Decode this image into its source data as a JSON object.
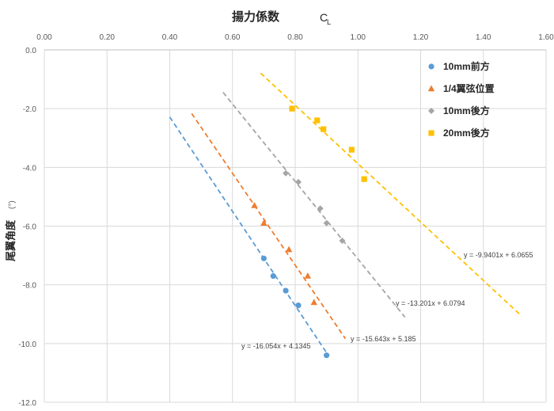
{
  "chart_data": {
    "type": "scatter",
    "title": "揚力係数",
    "title_symbol": "C",
    "title_subscript": "L",
    "xlabel": "",
    "ylabel": "尾翼角度",
    "ylabel_unit": "(°)",
    "xlim": [
      0.0,
      1.6
    ],
    "ylim": [
      -12.0,
      0.0
    ],
    "x_axis_position": "top",
    "x_ticks": [
      "0.00",
      "0.20",
      "0.40",
      "0.60",
      "0.80",
      "1.00",
      "1.20",
      "1.40",
      "1.60"
    ],
    "y_ticks": [
      "0.0",
      "-2.0",
      "-4.0",
      "-6.0",
      "-8.0",
      "-10.0",
      "-12.0"
    ],
    "grid": true,
    "legend_position": "top-right",
    "series": [
      {
        "name": "10mm前方",
        "color": "#5B9BD5",
        "marker": "circle",
        "points": [
          [
            0.7,
            -7.1
          ],
          [
            0.73,
            -7.7
          ],
          [
            0.77,
            -8.2
          ],
          [
            0.81,
            -8.7
          ],
          [
            0.9,
            -10.4
          ]
        ],
        "trendline": {
          "slope": -16.054,
          "intercept": 4.1345,
          "x_range": [
            0.4,
            0.9
          ],
          "equation": "y = -16.054x + 4.1345"
        }
      },
      {
        "name": "1/4翼弦位置",
        "color": "#ED7D31",
        "marker": "triangle",
        "points": [
          [
            0.67,
            -5.3
          ],
          [
            0.7,
            -5.9
          ],
          [
            0.78,
            -6.8
          ],
          [
            0.84,
            -7.7
          ],
          [
            0.86,
            -8.6
          ]
        ],
        "trendline": {
          "slope": -15.643,
          "intercept": 5.185,
          "x_range": [
            0.47,
            0.96
          ],
          "equation": "y = -15.643x + 5.185"
        }
      },
      {
        "name": "10mm後方",
        "color": "#A5A5A5",
        "marker": "diamond",
        "points": [
          [
            0.77,
            -4.2
          ],
          [
            0.81,
            -4.5
          ],
          [
            0.88,
            -5.4
          ],
          [
            0.9,
            -5.9
          ],
          [
            0.95,
            -6.5
          ]
        ],
        "trendline": {
          "slope": -13.201,
          "intercept": 6.0794,
          "x_range": [
            0.57,
            1.15
          ],
          "equation": "y = -13.201x + 6.0794"
        }
      },
      {
        "name": "20mm後方",
        "color": "#FFC000",
        "marker": "square",
        "points": [
          [
            0.79,
            -2.0
          ],
          [
            0.87,
            -2.4
          ],
          [
            0.89,
            -2.7
          ],
          [
            0.98,
            -3.4
          ],
          [
            1.02,
            -4.4
          ]
        ],
        "trendline": {
          "slope": -9.9401,
          "intercept": 6.0655,
          "x_range": [
            0.69,
            1.52
          ],
          "equation": "y = -9.9401x + 6.0655"
        }
      }
    ]
  }
}
